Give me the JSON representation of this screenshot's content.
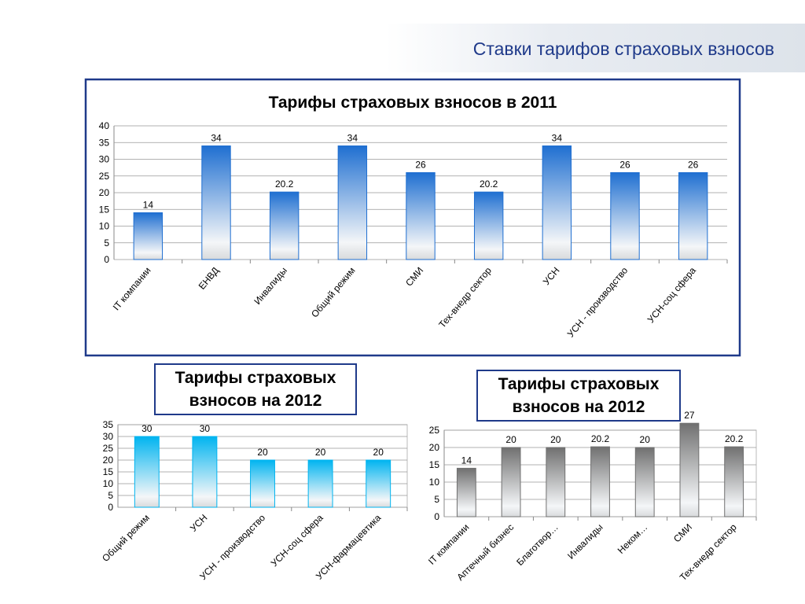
{
  "header": {
    "title": "Ставки тарифов страховых взносов"
  },
  "chart_data": [
    {
      "type": "bar",
      "title": "Тарифы страховых взносов в 2011",
      "categories": [
        "IT компании",
        "ЕНВД",
        "Инвалиды",
        "Общий режим",
        "СМИ",
        "Тех-внедр сектор",
        "УСН",
        "УСН - производство",
        "УСН-соц сфера"
      ],
      "values": [
        14,
        34,
        20.2,
        34,
        26,
        20.2,
        34,
        26,
        26
      ],
      "color": "#1f6fd1",
      "ylim": [
        0,
        40
      ],
      "yticks": [
        0,
        5,
        10,
        15,
        20,
        25,
        30,
        35,
        40
      ],
      "grid": true
    },
    {
      "type": "bar",
      "title": "Тарифы страховых взносов на 2012",
      "categories": [
        "Общий режим",
        "УСН",
        "УСН - производство",
        "УСН-соц сфера",
        "УСН-фармацевтика"
      ],
      "values": [
        30,
        30,
        20,
        20,
        20
      ],
      "color": "#00b4f0",
      "ylim": [
        0,
        35
      ],
      "yticks": [
        0,
        5,
        10,
        15,
        20,
        25,
        30,
        35
      ],
      "grid": true
    },
    {
      "type": "bar",
      "title": "Тарифы страховых взносов на 2012",
      "categories": [
        "IT компании",
        "Аптечный бизнес",
        "Благотвор…",
        "Инвалиды",
        "Неком…",
        "СМИ",
        "Тех-внедр сектор"
      ],
      "values": [
        14,
        20,
        20,
        20.2,
        20,
        27,
        20.2
      ],
      "color": "#707070",
      "ylim": [
        0,
        25
      ],
      "yticks": [
        0,
        5,
        10,
        15,
        20,
        25
      ],
      "grid": true
    }
  ]
}
